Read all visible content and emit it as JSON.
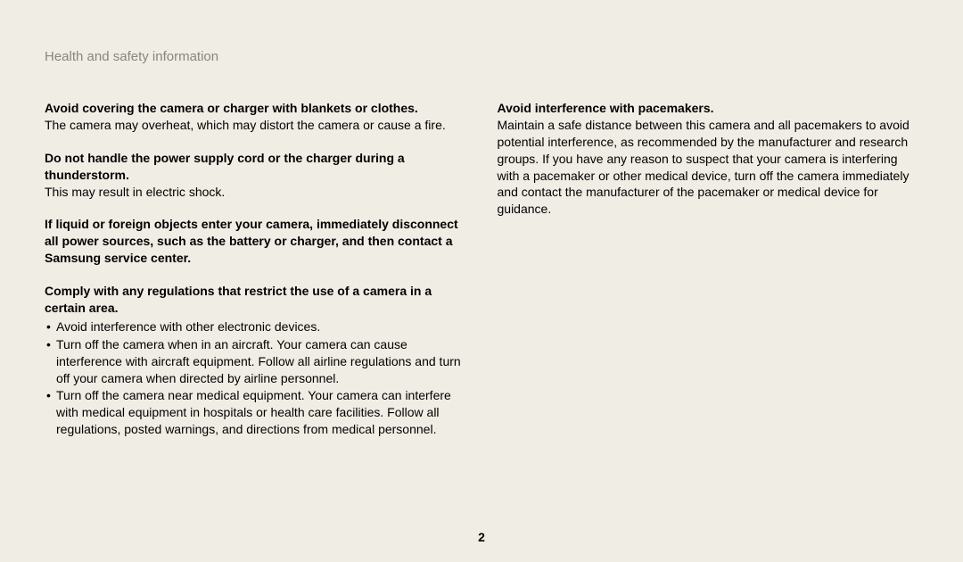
{
  "colors": {
    "background": "#f0ede4",
    "header_text": "#878681",
    "body_text": "#000000"
  },
  "typography": {
    "header_fontsize": 15,
    "body_fontsize": 14,
    "heading_weight": 700,
    "body_weight": 400
  },
  "header": {
    "title": "Health and safety information"
  },
  "left_column": {
    "sections": [
      {
        "heading": "Avoid covering the camera or charger with blankets or clothes.",
        "body": "The camera may overheat, which may distort the camera or cause a fire."
      },
      {
        "heading": "Do not handle the power supply cord or the charger during a thunderstorm.",
        "body": "This may result in electric shock."
      },
      {
        "heading": "If liquid or foreign objects enter your camera, immediately disconnect all power sources, such as the battery or charger, and then contact a Samsung service center.",
        "body": ""
      },
      {
        "heading": "Comply with any regulations that restrict the use of a camera in a certain area.",
        "bullets": [
          "Avoid interference with other electronic devices.",
          "Turn off the camera when in an aircraft. Your camera can cause interference with aircraft equipment. Follow all airline regulations and turn off your camera when directed by airline personnel.",
          "Turn off the camera near medical equipment. Your camera can interfere with medical equipment in hospitals or health care facilities. Follow all regulations, posted warnings, and directions from medical personnel."
        ]
      }
    ]
  },
  "right_column": {
    "sections": [
      {
        "heading": "Avoid interference with pacemakers.",
        "body": "Maintain a safe distance between this camera and all pacemakers to avoid potential interference, as recommended by the manufacturer and research groups. If you have any reason to suspect that your camera is interfering with a pacemaker or other medical device, turn off the camera immediately and contact the manufacturer of the pacemaker or medical device for guidance."
      }
    ]
  },
  "page_number": "2"
}
